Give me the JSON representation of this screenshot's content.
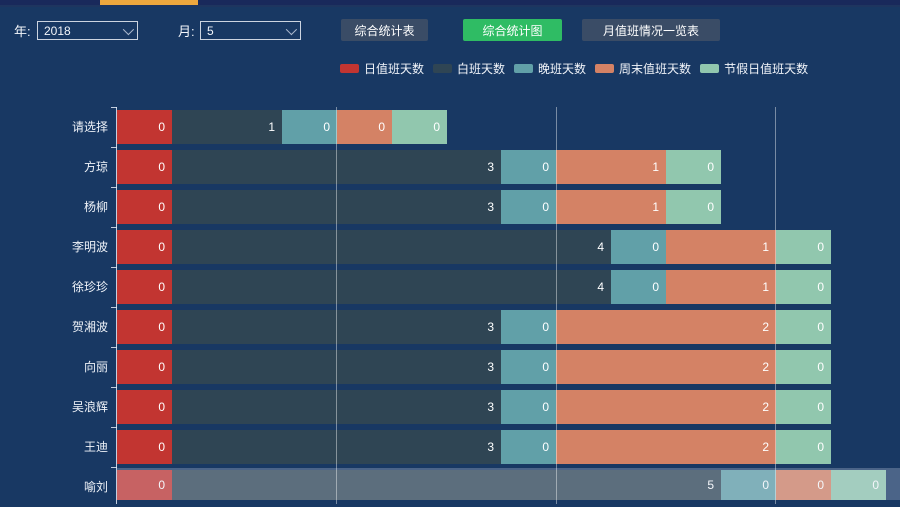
{
  "page": {
    "background": "#183863"
  },
  "topbar": {
    "track_color": "#19295b",
    "indicator_color": "#eda73e"
  },
  "toolbar": {
    "year_label": "年:",
    "year_value": "2018",
    "month_label": "月:",
    "month_value": "5",
    "buttons": [
      {
        "label": "综合统计表",
        "active": false
      },
      {
        "label": "综合统计图",
        "active": true
      },
      {
        "label": "月值班情况一览表",
        "active": false
      }
    ],
    "button_color": "#3a4c66",
    "active_button_color": "#2fbc64"
  },
  "legend": [
    {
      "label": "日值班天数",
      "color": "#c23531"
    },
    {
      "label": "白班天数",
      "color": "#2f4554"
    },
    {
      "label": "晚班天数",
      "color": "#61a0a8"
    },
    {
      "label": "周末值班天数",
      "color": "#d48265"
    },
    {
      "label": "节假日值班天数",
      "color": "#91c7ae"
    }
  ],
  "chart_data": {
    "type": "bar",
    "orientation": "horizontal",
    "stacked": true,
    "title": "",
    "xlabel": "",
    "ylabel": "",
    "categories": [
      "请选择",
      "方琼",
      "杨柳",
      "李明波",
      "徐珍珍",
      "贺湘波",
      "向丽",
      "吴浪辉",
      "王迪",
      "喻刘"
    ],
    "series": [
      {
        "name": "日值班天数",
        "color": "#c23531",
        "values": [
          0,
          0,
          0,
          0,
          0,
          0,
          0,
          0,
          0,
          0
        ]
      },
      {
        "name": "白班天数",
        "color": "#2f4554",
        "values": [
          1,
          3,
          3,
          4,
          4,
          3,
          3,
          3,
          3,
          5
        ]
      },
      {
        "name": "晚班天数",
        "color": "#61a0a8",
        "values": [
          0,
          0,
          0,
          0,
          0,
          0,
          0,
          0,
          0,
          0
        ]
      },
      {
        "name": "周末值班天数",
        "color": "#d48265",
        "values": [
          0,
          1,
          1,
          1,
          1,
          2,
          2,
          2,
          2,
          0
        ]
      },
      {
        "name": "节假日值班天数",
        "color": "#91c7ae",
        "values": [
          0,
          0,
          0,
          0,
          0,
          0,
          0,
          0,
          0,
          0
        ]
      }
    ],
    "value_labels": "inside-right",
    "highlighted_category": "喻刘",
    "legend_position": "top",
    "grid": "vertical-splitlines",
    "x_axis": {
      "gridline_every_units": 4,
      "visible_gridline_units": [
        4,
        8,
        12
      ]
    },
    "bar_length_rule": "rendered length = 2*value units, minimum 1 unit for zero values"
  }
}
